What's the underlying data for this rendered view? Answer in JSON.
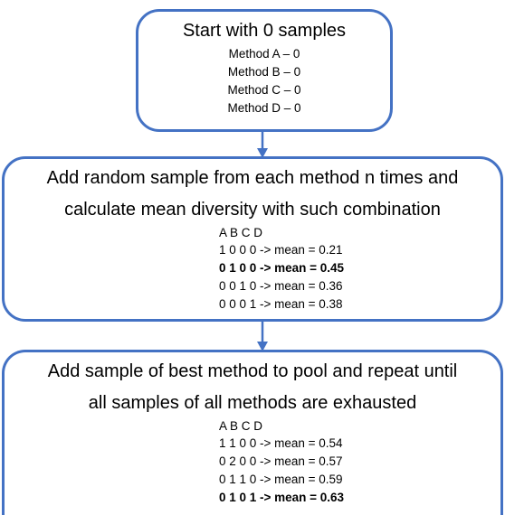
{
  "box1": {
    "title": "Start with 0 samples",
    "lines": [
      "Method A – 0",
      "Method B – 0",
      "Method C – 0",
      "Method D – 0"
    ]
  },
  "box2": {
    "title_line1": "Add random sample from each method n times and",
    "title_line2": "calculate mean diversity with such combination",
    "header": "A B C D",
    "rows": [
      {
        "text": "1 0 0 0 -> mean = 0.21",
        "bold": false
      },
      {
        "text": "0 1 0 0 -> mean = 0.45",
        "bold": true
      },
      {
        "text": "0 0 1 0 -> mean = 0.36",
        "bold": false
      },
      {
        "text": "0 0 0 1 -> mean = 0.38",
        "bold": false
      }
    ]
  },
  "box3": {
    "title_line1": "Add sample of best method to pool and repeat until",
    "title_line2": "all samples of all methods are exhausted",
    "header": "A B C D",
    "rows": [
      {
        "text": "1 1 0 0 -> mean = 0.54",
        "bold": false
      },
      {
        "text": "0 2 0 0 -> mean = 0.57",
        "bold": false
      },
      {
        "text": "0 1 1 0 -> mean = 0.59",
        "bold": false
      },
      {
        "text": "0 1 0 1 -> mean = 0.63",
        "bold": true
      }
    ]
  },
  "colors": {
    "border": "#4472c4",
    "arrow": "#4472c4"
  }
}
